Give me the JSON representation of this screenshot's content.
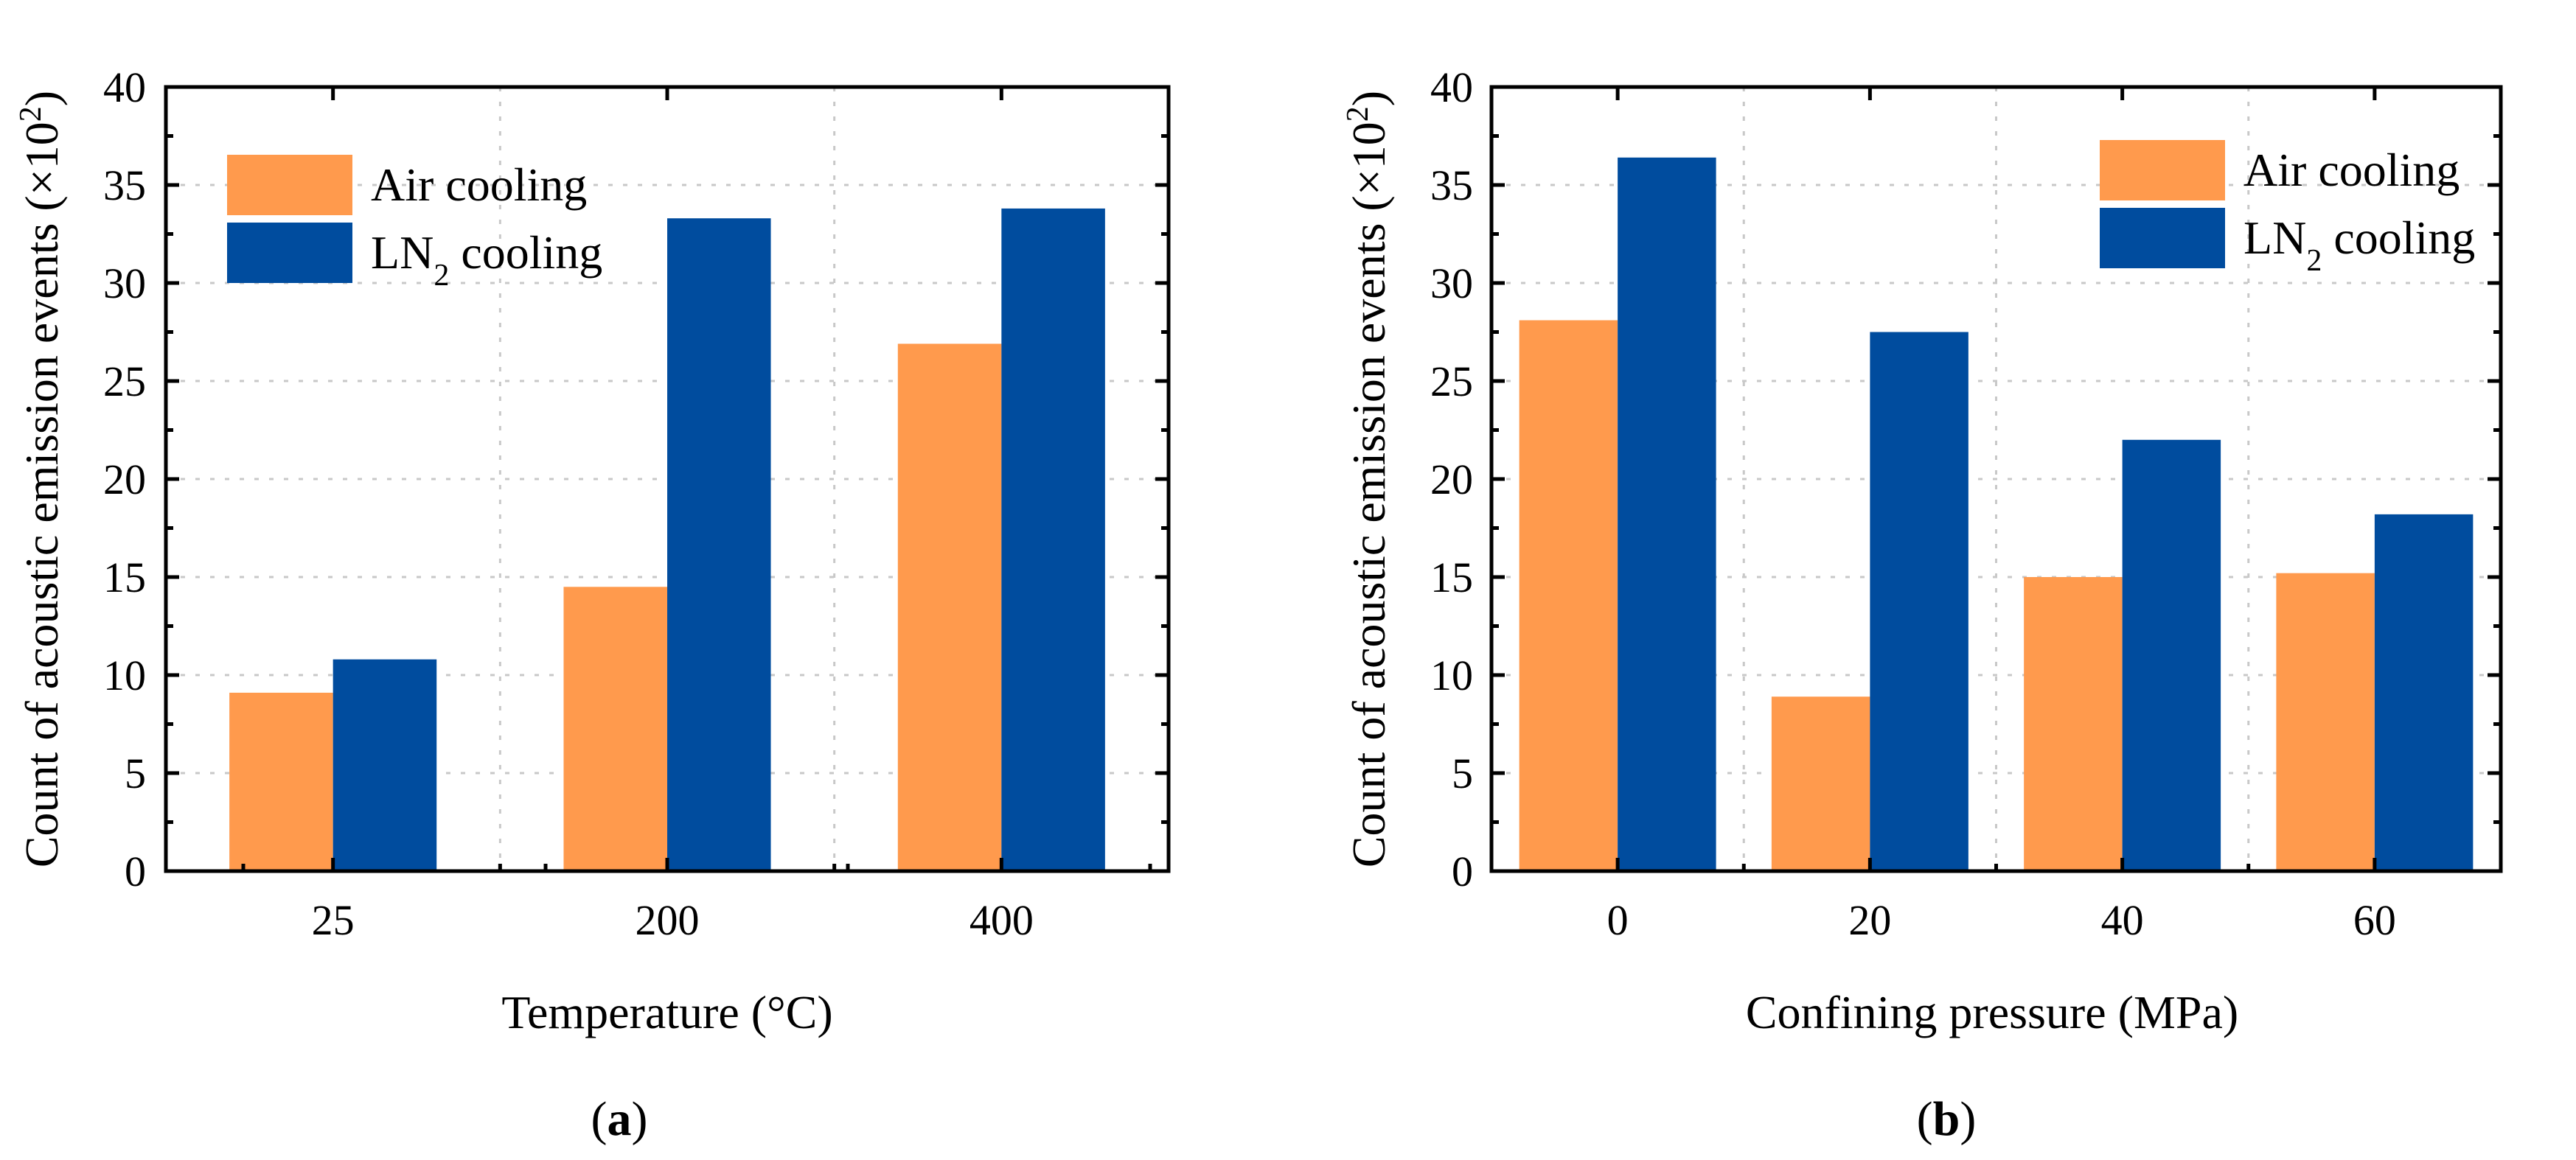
{
  "chart_data": [
    {
      "id": "a",
      "type": "bar",
      "panel_label": "a",
      "categories": [
        "25",
        "200",
        "400"
      ],
      "series": [
        {
          "name": "Air cooling",
          "name_base": "Air cooling",
          "name_sub": "",
          "name_tail": "",
          "values": [
            9.1,
            14.5,
            26.9
          ]
        },
        {
          "name": "LN2 cooling",
          "name_base": "LN",
          "name_sub": "2",
          "name_tail": " cooling",
          "values": [
            10.8,
            33.3,
            33.8
          ]
        }
      ],
      "xlabel": "Temperature (°C)",
      "ylabel": "Count of acoustic emission events (×10",
      "ylabel_sup": "2",
      "ylabel_tail": ")",
      "ylim": [
        0,
        40
      ],
      "yticks": [
        0,
        5,
        10,
        15,
        20,
        25,
        30,
        35,
        40
      ],
      "grid": true,
      "legend_position": "top-left"
    },
    {
      "id": "b",
      "type": "bar",
      "panel_label": "b",
      "categories": [
        "0",
        "20",
        "40",
        "60"
      ],
      "series": [
        {
          "name": "Air cooling",
          "name_base": "Air cooling",
          "name_sub": "",
          "name_tail": "",
          "values": [
            28.1,
            8.9,
            15.0,
            15.2
          ]
        },
        {
          "name": "LN2 cooling",
          "name_base": "LN",
          "name_sub": "2",
          "name_tail": " cooling",
          "values": [
            36.4,
            27.5,
            22.0,
            18.2
          ]
        }
      ],
      "xlabel": "Confining pressure (MPa)",
      "ylabel": "Count of acoustic emission events (×10",
      "ylabel_sup": "2",
      "ylabel_tail": ")",
      "ylim": [
        0,
        40
      ],
      "yticks": [
        0,
        5,
        10,
        15,
        20,
        25,
        30,
        35,
        40
      ],
      "grid": true,
      "legend_position": "top-right"
    }
  ],
  "colors": {
    "air": "#FF9A4D",
    "ln2": "#004C9E"
  }
}
